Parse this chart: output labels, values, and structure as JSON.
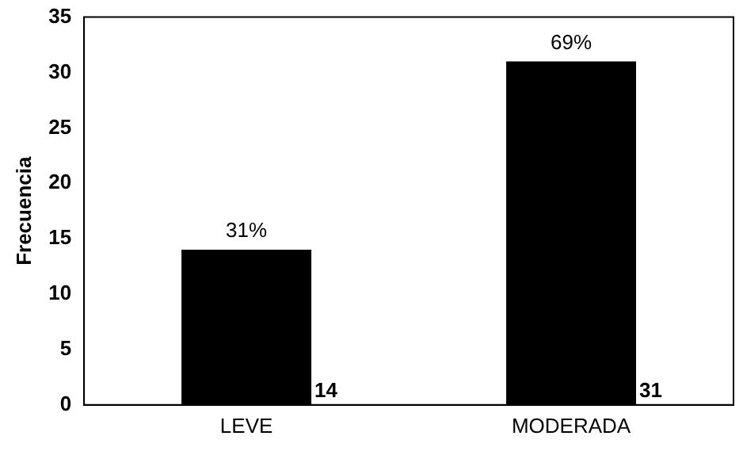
{
  "chart_data": {
    "type": "bar",
    "categories": [
      "LEVE",
      "MODERADA"
    ],
    "values": [
      14,
      31
    ],
    "color": "#000000",
    "ylabel": "Frecuencia",
    "ylim": [
      0,
      35
    ],
    "yticks": [
      0,
      5,
      10,
      15,
      20,
      25,
      30,
      35
    ],
    "grid": false,
    "legend": false,
    "data_labels": true,
    "annotations": [
      {
        "text": "31%",
        "x": "LEVE",
        "y": 14
      },
      {
        "text": "69%",
        "x": "MODERADA",
        "y": 31
      }
    ]
  }
}
